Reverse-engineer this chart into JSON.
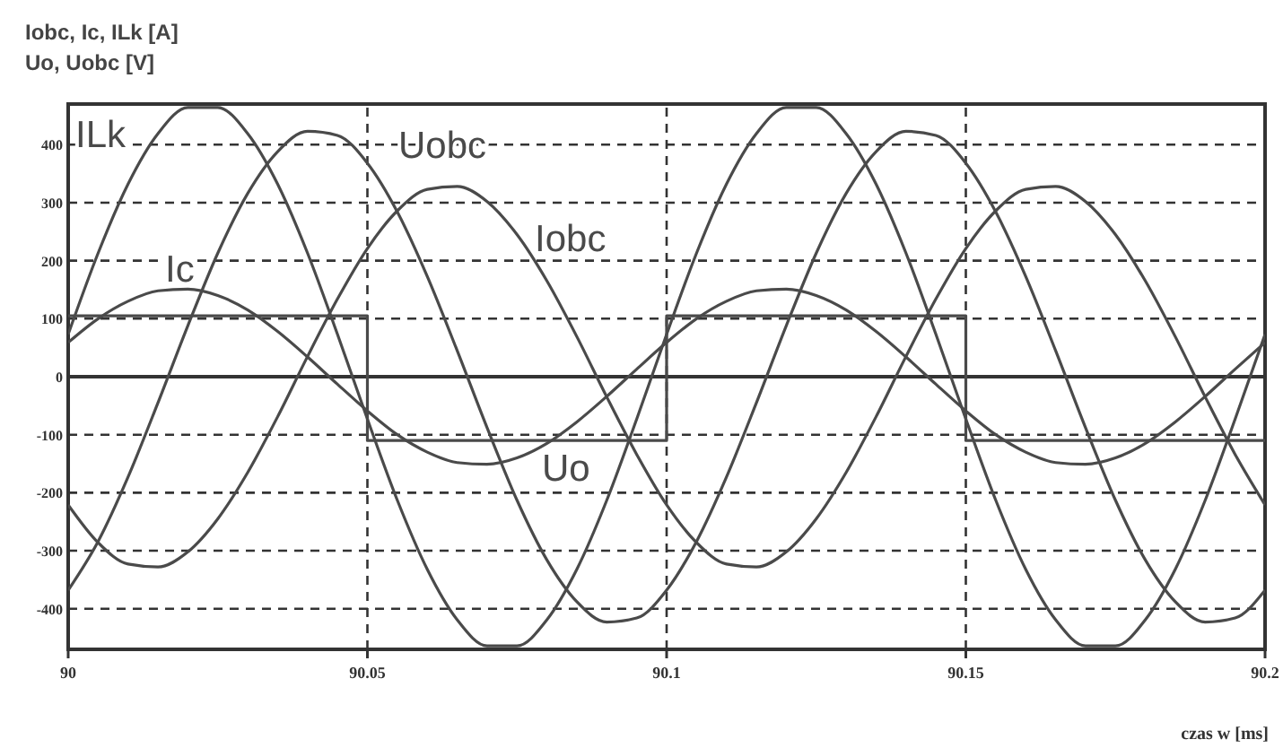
{
  "chart_data": {
    "type": "line",
    "ylabel": "Iobc, Ic,  ILk [A]\nUo, Uobc [V]",
    "xlabel": "czas w [ms]",
    "x": [
      90,
      90.005,
      90.01,
      90.015,
      90.02,
      90.025,
      90.03,
      90.035,
      90.04,
      90.045,
      90.05,
      90.055,
      90.06,
      90.065,
      90.07,
      90.075,
      90.08,
      90.085,
      90.09,
      90.095,
      90.1,
      90.105,
      90.11,
      90.115,
      90.12,
      90.125,
      90.13,
      90.135,
      90.14,
      90.145,
      90.15,
      90.155,
      90.16,
      90.165,
      90.17,
      90.175,
      90.18,
      90.185,
      90.19,
      90.195,
      90.2
    ],
    "series": [
      {
        "name": "ILk",
        "color": "#4a4a4a",
        "values": [
          73,
          213,
          332,
          419,
          464,
          464,
          419,
          332,
          213,
          73,
          -73,
          -213,
          -332,
          -419,
          -464,
          -464,
          -419,
          -332,
          -213,
          -73,
          73,
          213,
          332,
          419,
          464,
          464,
          419,
          332,
          213,
          73,
          -73,
          -213,
          -332,
          -419,
          -464,
          -464,
          -419,
          -332,
          -213,
          -73,
          73
        ]
      },
      {
        "name": "Uobc",
        "color": "#4a4a4a",
        "values": [
          -368,
          -284,
          -173,
          -45,
          88,
          213,
          316,
          388,
          423,
          416,
          368,
          284,
          173,
          45,
          -88,
          -213,
          -316,
          -388,
          -423,
          -416,
          -368,
          -284,
          -173,
          -45,
          88,
          213,
          316,
          388,
          423,
          416,
          368,
          284,
          173,
          45,
          -88,
          -213,
          -316,
          -388,
          -423,
          -416,
          -368
        ]
      },
      {
        "name": "Iobc",
        "color": "#4a4a4a",
        "values": [
          -221,
          -286,
          -323,
          -328,
          -302,
          -245,
          -165,
          -69,
          35,
          134,
          221,
          286,
          323,
          328,
          302,
          245,
          165,
          69,
          -35,
          -134,
          -221,
          -286,
          -323,
          -328,
          -302,
          -245,
          -165,
          -69,
          35,
          134,
          221,
          286,
          323,
          328,
          302,
          245,
          165,
          69,
          -35,
          -134,
          -221
        ]
      },
      {
        "name": "Ic",
        "color": "#4a4a4a",
        "values": [
          59,
          100,
          130,
          148,
          151,
          140,
          115,
          78,
          34,
          -13,
          -59,
          -100,
          -130,
          -148,
          -151,
          -140,
          -115,
          -78,
          -34,
          13,
          59,
          100,
          130,
          148,
          151,
          140,
          115,
          78,
          34,
          -13,
          -59,
          -100,
          -130,
          -148,
          -151,
          -140,
          -115,
          -78,
          -34,
          13,
          59
        ]
      },
      {
        "name": "Uo",
        "type": "step",
        "color": "#4a4a4a",
        "x": [
          90,
          90.05,
          90.1,
          90.15,
          90.2
        ],
        "values": [
          105,
          -110,
          105,
          -110,
          -110
        ]
      }
    ],
    "xlim": [
      90,
      90.2
    ],
    "xticks": [
      90,
      90.05,
      90.1,
      90.15,
      90.2
    ],
    "ylim": [
      -470,
      470
    ],
    "yticks": [
      -400,
      -300,
      -200,
      -100,
      0,
      100,
      200,
      300,
      400
    ],
    "ref_lines": [
      {
        "axis": "y",
        "value": 0,
        "color": "#333333"
      }
    ],
    "grid": true,
    "line_style": "solid"
  }
}
